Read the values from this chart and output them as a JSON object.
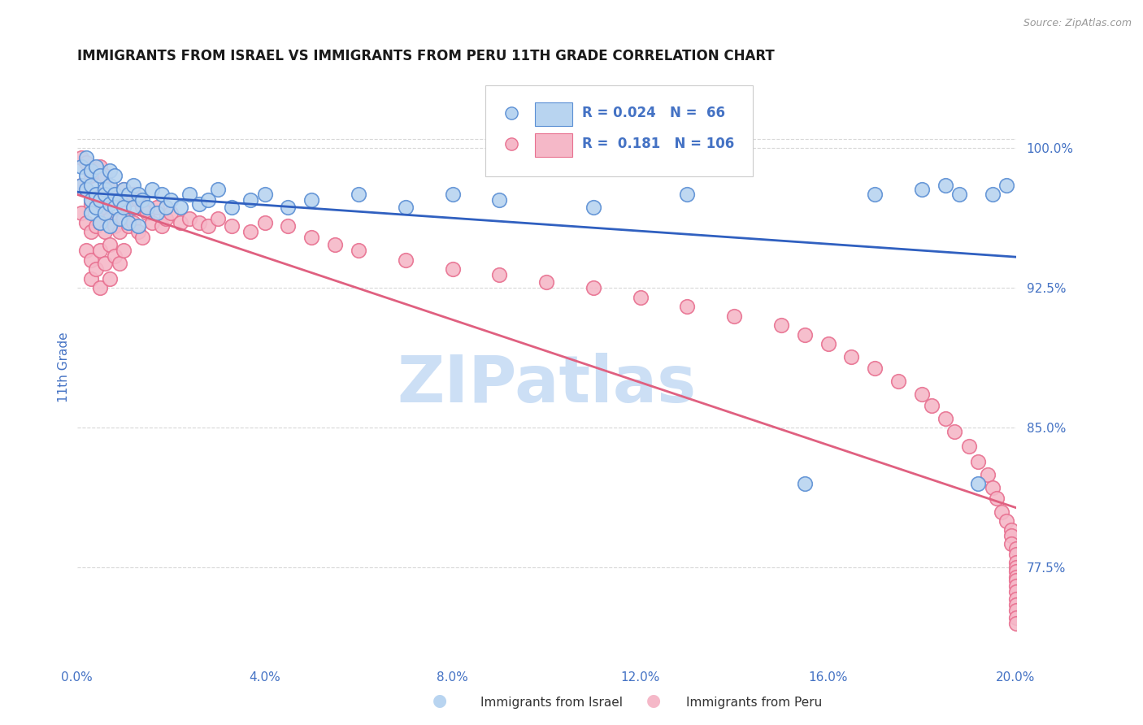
{
  "title": "IMMIGRANTS FROM ISRAEL VS IMMIGRANTS FROM PERU 11TH GRADE CORRELATION CHART",
  "source": "Source: ZipAtlas.com",
  "ylabel": "11th Grade",
  "right_yticks": [
    0.775,
    0.85,
    0.925,
    1.0
  ],
  "right_yticklabels": [
    "77.5%",
    "85.0%",
    "92.5%",
    "100.0%"
  ],
  "legend_israel_R": "0.024",
  "legend_israel_N": "66",
  "legend_peru_R": "0.181",
  "legend_peru_N": "106",
  "israel_scatter_face": "#b8d4f0",
  "israel_scatter_edge": "#5b8fd4",
  "peru_scatter_face": "#f5b8c8",
  "peru_scatter_edge": "#e87090",
  "trendline_israel_color": "#3060c0",
  "trendline_peru_color": "#e06080",
  "background_color": "#ffffff",
  "watermark_color": "#ccdff5",
  "grid_color": "#d8d8d8",
  "axis_color": "#4472c4",
  "xlim": [
    0.0,
    0.2
  ],
  "ylim": [
    0.725,
    1.04
  ],
  "israel_x": [
    0.001,
    0.001,
    0.002,
    0.002,
    0.002,
    0.003,
    0.003,
    0.003,
    0.003,
    0.004,
    0.004,
    0.004,
    0.005,
    0.005,
    0.005,
    0.006,
    0.006,
    0.006,
    0.007,
    0.007,
    0.007,
    0.007,
    0.008,
    0.008,
    0.008,
    0.009,
    0.009,
    0.01,
    0.01,
    0.011,
    0.011,
    0.012,
    0.012,
    0.013,
    0.013,
    0.014,
    0.015,
    0.016,
    0.017,
    0.018,
    0.019,
    0.02,
    0.022,
    0.024,
    0.026,
    0.028,
    0.03,
    0.033,
    0.037,
    0.04,
    0.045,
    0.05,
    0.06,
    0.07,
    0.08,
    0.09,
    0.11,
    0.13,
    0.155,
    0.17,
    0.18,
    0.185,
    0.188,
    0.192,
    0.195,
    0.198
  ],
  "israel_y": [
    0.98,
    0.99,
    0.985,
    0.978,
    0.995,
    0.988,
    0.972,
    0.98,
    0.965,
    0.975,
    0.968,
    0.99,
    0.972,
    0.985,
    0.96,
    0.978,
    0.965,
    0.975,
    0.988,
    0.97,
    0.98,
    0.958,
    0.975,
    0.968,
    0.985,
    0.972,
    0.962,
    0.978,
    0.968,
    0.975,
    0.96,
    0.98,
    0.968,
    0.975,
    0.958,
    0.972,
    0.968,
    0.978,
    0.965,
    0.975,
    0.968,
    0.972,
    0.968,
    0.975,
    0.97,
    0.972,
    0.978,
    0.968,
    0.972,
    0.975,
    0.968,
    0.972,
    0.975,
    0.968,
    0.975,
    0.972,
    0.968,
    0.975,
    0.82,
    0.975,
    0.978,
    0.98,
    0.975,
    0.82,
    0.975,
    0.98
  ],
  "peru_x": [
    0.001,
    0.001,
    0.001,
    0.002,
    0.002,
    0.002,
    0.002,
    0.003,
    0.003,
    0.003,
    0.003,
    0.003,
    0.004,
    0.004,
    0.004,
    0.004,
    0.005,
    0.005,
    0.005,
    0.005,
    0.005,
    0.006,
    0.006,
    0.006,
    0.006,
    0.007,
    0.007,
    0.007,
    0.007,
    0.008,
    0.008,
    0.008,
    0.009,
    0.009,
    0.009,
    0.01,
    0.01,
    0.01,
    0.011,
    0.011,
    0.012,
    0.012,
    0.013,
    0.013,
    0.014,
    0.014,
    0.015,
    0.016,
    0.017,
    0.018,
    0.019,
    0.02,
    0.022,
    0.024,
    0.026,
    0.028,
    0.03,
    0.033,
    0.037,
    0.04,
    0.045,
    0.05,
    0.055,
    0.06,
    0.07,
    0.08,
    0.09,
    0.1,
    0.11,
    0.12,
    0.13,
    0.14,
    0.15,
    0.155,
    0.16,
    0.165,
    0.17,
    0.175,
    0.18,
    0.182,
    0.185,
    0.187,
    0.19,
    0.192,
    0.194,
    0.195,
    0.196,
    0.197,
    0.198,
    0.199,
    0.199,
    0.199,
    0.2,
    0.2,
    0.2,
    0.2,
    0.2,
    0.2,
    0.2,
    0.2,
    0.2,
    0.2,
    0.2,
    0.2,
    0.2,
    0.2
  ],
  "peru_y": [
    0.995,
    0.98,
    0.965,
    0.992,
    0.978,
    0.96,
    0.945,
    0.985,
    0.97,
    0.955,
    0.94,
    0.93,
    0.988,
    0.972,
    0.958,
    0.935,
    0.99,
    0.975,
    0.96,
    0.945,
    0.925,
    0.985,
    0.968,
    0.955,
    0.938,
    0.978,
    0.962,
    0.948,
    0.93,
    0.975,
    0.958,
    0.942,
    0.972,
    0.955,
    0.938,
    0.978,
    0.962,
    0.945,
    0.972,
    0.958,
    0.975,
    0.96,
    0.972,
    0.955,
    0.968,
    0.952,
    0.965,
    0.96,
    0.968,
    0.958,
    0.962,
    0.965,
    0.96,
    0.962,
    0.96,
    0.958,
    0.962,
    0.958,
    0.955,
    0.96,
    0.958,
    0.952,
    0.948,
    0.945,
    0.94,
    0.935,
    0.932,
    0.928,
    0.925,
    0.92,
    0.915,
    0.91,
    0.905,
    0.9,
    0.895,
    0.888,
    0.882,
    0.875,
    0.868,
    0.862,
    0.855,
    0.848,
    0.84,
    0.832,
    0.825,
    0.818,
    0.812,
    0.805,
    0.8,
    0.795,
    0.792,
    0.788,
    0.785,
    0.782,
    0.778,
    0.775,
    0.773,
    0.77,
    0.768,
    0.765,
    0.762,
    0.758,
    0.755,
    0.752,
    0.748,
    0.745
  ]
}
